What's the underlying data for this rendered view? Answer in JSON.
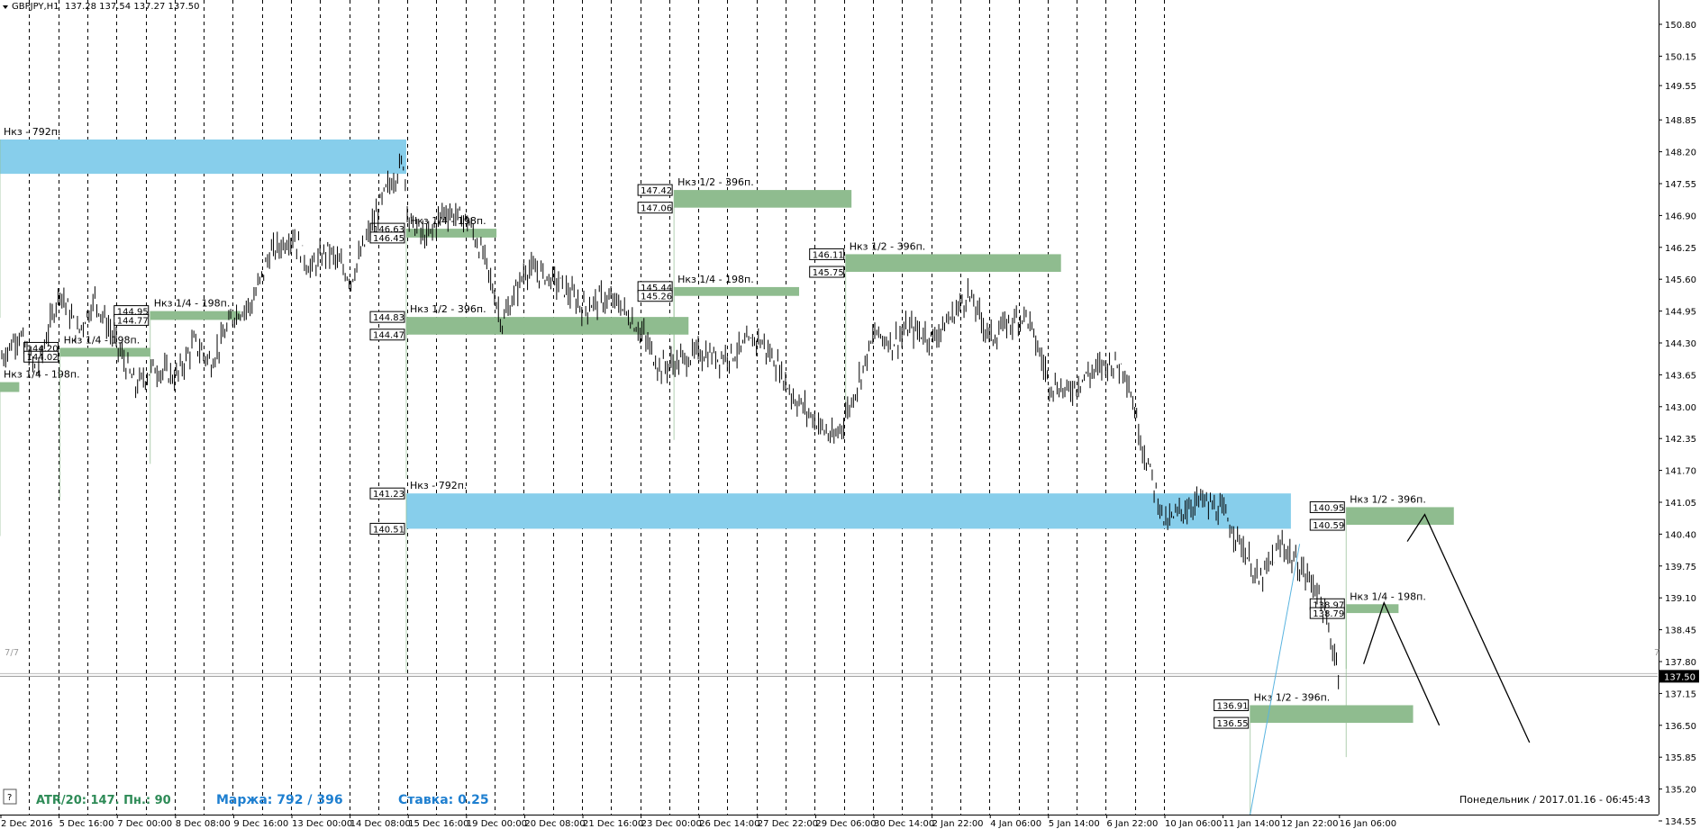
{
  "header": {
    "symbol": "GBPJPY,H1",
    "ohlc": "137.28 137.54 137.27 137.50"
  },
  "footer": {
    "atr_text": "ATR/20: 147. Пн.: 90",
    "margin_text": "Маржа: 792 / 396",
    "rate_text": "Ставка: 0.25",
    "datetime_text": "Понедельник  /  2017.01.16  -  06:45:43",
    "help_label": "?"
  },
  "markers": {
    "left_77": "7/7",
    "right_7": "7"
  },
  "colors": {
    "blue_zone": "#87ceeb",
    "green_zone": "#8fbc8f",
    "candle": "#000000",
    "atr_text": "#2e8b57",
    "margin_text": "#1e7fd0",
    "current_price_bg": "#000000"
  },
  "chart_data": {
    "type": "line",
    "symbol": "GBPJPY",
    "timeframe": "H1",
    "ylim": [
      134.55,
      151.2
    ],
    "y_ticks": [
      "150.80",
      "150.15",
      "149.55",
      "148.85",
      "148.20",
      "147.55",
      "146.90",
      "146.25",
      "145.60",
      "144.95",
      "144.30",
      "143.65",
      "143.00",
      "142.35",
      "141.70",
      "141.05",
      "140.40",
      "139.75",
      "139.10",
      "138.45",
      "137.80",
      "137.15",
      "136.50",
      "135.85",
      "135.20",
      "134.55"
    ],
    "x_ticks": [
      "2 Dec 2016",
      "5 Dec 16:00",
      "7 Dec 00:00",
      "8 Dec 08:00",
      "9 Dec 16:00",
      "13 Dec 00:00",
      "14 Dec 08:00",
      "15 Dec 16:00",
      "19 Dec 00:00",
      "20 Dec 08:00",
      "21 Dec 16:00",
      "23 Dec 00:00",
      "26 Dec 14:00",
      "27 Dec 22:00",
      "29 Dec 06:00",
      "30 Dec 14:00",
      "2 Jan 22:00",
      "4 Jan 06:00",
      "5 Jan 14:00",
      "6 Jan 22:00",
      "10 Jan 06:00",
      "11 Jan 14:00",
      "12 Jan 22:00",
      "16 Jan 06:00"
    ],
    "current_price": "137.50",
    "price_path": [
      [
        0,
        144.0
      ],
      [
        0.3,
        144.5
      ],
      [
        0.6,
        143.7
      ],
      [
        1.0,
        145.4
      ],
      [
        1.3,
        144.5
      ],
      [
        1.6,
        145.2
      ],
      [
        2.0,
        144.2
      ],
      [
        2.3,
        143.4
      ],
      [
        2.6,
        143.8
      ],
      [
        3.0,
        143.6
      ],
      [
        3.3,
        144.3
      ],
      [
        3.6,
        143.9
      ],
      [
        4.0,
        144.9
      ],
      [
        4.3,
        145.1
      ],
      [
        4.6,
        146.1
      ],
      [
        5.0,
        146.5
      ],
      [
        5.3,
        145.8
      ],
      [
        5.6,
        146.2
      ],
      [
        6.0,
        145.6
      ],
      [
        6.3,
        146.5
      ],
      [
        6.6,
        147.4
      ],
      [
        6.9,
        148.0
      ],
      [
        7.0,
        146.8
      ],
      [
        7.3,
        146.4
      ],
      [
        7.6,
        147.0
      ],
      [
        8.0,
        146.8
      ],
      [
        8.3,
        146.0
      ],
      [
        8.6,
        144.7
      ],
      [
        9.0,
        145.8
      ],
      [
        9.3,
        145.7
      ],
      [
        9.6,
        145.5
      ],
      [
        10.0,
        145.0
      ],
      [
        10.3,
        145.2
      ],
      [
        10.6,
        145.1
      ],
      [
        11.0,
        144.5
      ],
      [
        11.3,
        143.8
      ],
      [
        11.6,
        143.9
      ],
      [
        12.0,
        144.1
      ],
      [
        12.3,
        144.0
      ],
      [
        12.6,
        144.1
      ],
      [
        13.0,
        144.4
      ],
      [
        13.3,
        143.9
      ],
      [
        13.6,
        143.2
      ],
      [
        14.0,
        142.7
      ],
      [
        14.3,
        142.3
      ],
      [
        14.6,
        143.1
      ],
      [
        15.0,
        144.5
      ],
      [
        15.3,
        144.3
      ],
      [
        15.6,
        144.6
      ],
      [
        16.0,
        144.4
      ],
      [
        16.3,
        144.8
      ],
      [
        16.6,
        145.3
      ],
      [
        17.0,
        144.4
      ],
      [
        17.3,
        144.7
      ],
      [
        17.6,
        144.9
      ],
      [
        18.0,
        143.5
      ],
      [
        18.3,
        143.3
      ],
      [
        18.6,
        143.6
      ],
      [
        19.0,
        143.9
      ],
      [
        19.3,
        143.8
      ],
      [
        19.6,
        142.2
      ],
      [
        20.0,
        140.6
      ],
      [
        20.3,
        140.9
      ],
      [
        20.6,
        141.1
      ],
      [
        21.0,
        140.8
      ],
      [
        21.3,
        140.2
      ],
      [
        21.6,
        139.4
      ],
      [
        22.0,
        140.2
      ],
      [
        22.3,
        139.7
      ],
      [
        22.6,
        139.3
      ],
      [
        23.0,
        137.5
      ]
    ],
    "zones": [
      {
        "label": "Нкз - 792п.",
        "color": "blue",
        "top": 148.45,
        "bottom": 147.75,
        "x0": -0.1,
        "x1": 6.95,
        "prices": []
      },
      {
        "label": "Нкз - 792п.",
        "color": "blue",
        "top": 141.23,
        "bottom": 140.51,
        "x0": 6.95,
        "x1": 22.15,
        "prices": [
          "141.23",
          "140.51"
        ]
      },
      {
        "label": "Нкз 1/4 - 198п.",
        "color": "green",
        "top": 143.5,
        "bottom": 143.3,
        "x0": -0.1,
        "x1": 0.3,
        "prices": []
      },
      {
        "label": "Нкз 1/4 - 198п.",
        "color": "green",
        "top": 144.2,
        "bottom": 144.02,
        "x0": 1.0,
        "x1": 2.55,
        "prices": [
          "144.20",
          "144.02"
        ]
      },
      {
        "label": "Нкз 1/4 - 198п.",
        "color": "green",
        "top": 144.95,
        "bottom": 144.77,
        "x0": 2.55,
        "x1": 4.1,
        "prices": [
          "144.95",
          "144.77"
        ]
      },
      {
        "label": "Нкз 1/4 - 198п.",
        "color": "green",
        "top": 146.63,
        "bottom": 146.45,
        "x0": 6.95,
        "x1": 8.5,
        "prices": [
          "146.63",
          "146.45"
        ]
      },
      {
        "label": "Нкз 1/2 - 396п.",
        "color": "green",
        "top": 144.83,
        "bottom": 144.47,
        "x0": 6.95,
        "x1": 11.8,
        "prices": [
          "144.83",
          "144.47"
        ]
      },
      {
        "label": "Нкз 1/2 - 396п.",
        "color": "green",
        "top": 147.42,
        "bottom": 147.06,
        "x0": 11.55,
        "x1": 14.6,
        "prices": [
          "147.42",
          "147.06"
        ]
      },
      {
        "label": "Нкз 1/4 - 198п.",
        "color": "green",
        "top": 145.44,
        "bottom": 145.26,
        "x0": 11.55,
        "x1": 13.7,
        "prices": [
          "145.44",
          "145.26"
        ]
      },
      {
        "label": "Нкз 1/2 - 396п.",
        "color": "green",
        "top": 146.11,
        "bottom": 145.75,
        "x0": 14.5,
        "x1": 18.2,
        "prices": [
          "146.11",
          "145.75"
        ]
      },
      {
        "label": "Нкз 1/2 - 396п.",
        "color": "green",
        "top": 140.95,
        "bottom": 140.59,
        "x0": 23.1,
        "x1": 24.95,
        "prices": [
          "140.95",
          "140.59"
        ]
      },
      {
        "label": "Нкз 1/4 - 198п.",
        "color": "green",
        "top": 138.97,
        "bottom": 138.79,
        "x0": 23.1,
        "x1": 24.0,
        "prices": [
          "138.97",
          "138.79"
        ]
      },
      {
        "label": "Нкз 1/2 - 396п.",
        "color": "green",
        "top": 136.91,
        "bottom": 136.55,
        "x0": 21.45,
        "x1": 24.25,
        "prices": [
          "136.91",
          "136.55"
        ]
      }
    ],
    "projections": [
      [
        [
          24.15,
          140.25
        ],
        [
          24.45,
          140.8
        ],
        [
          26.25,
          136.15
        ]
      ],
      [
        [
          23.4,
          137.75
        ],
        [
          23.75,
          139.0
        ],
        [
          24.7,
          136.5
        ]
      ]
    ],
    "grid": "vertical-dashed",
    "legend": "none"
  }
}
